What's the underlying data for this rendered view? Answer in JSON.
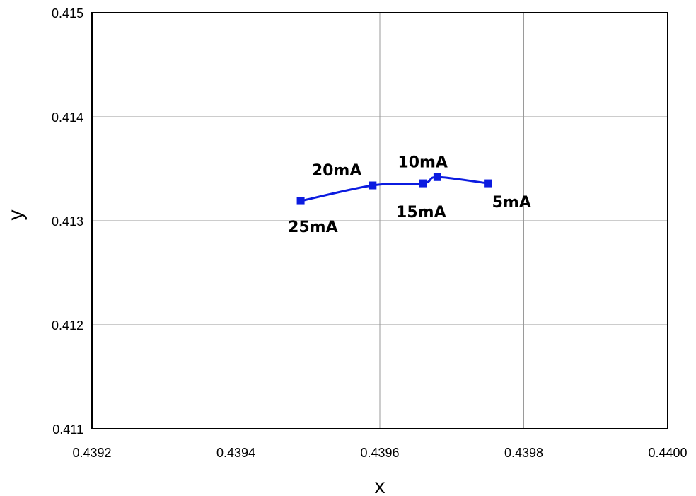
{
  "chart_data": {
    "type": "scatter",
    "xlabel": "x",
    "ylabel": "y",
    "xlim": [
      0.4392,
      0.44
    ],
    "ylim": [
      0.411,
      0.415
    ],
    "x_ticks": [
      "0.4392",
      "0.4394",
      "0.4396",
      "0.4398",
      "0.4400"
    ],
    "y_ticks": [
      "0.411",
      "0.412",
      "0.413",
      "0.414",
      "0.415"
    ],
    "grid": true,
    "series": [
      {
        "color": "#0b1be0",
        "marker": "square",
        "smooth": true,
        "points": [
          {
            "x": 0.43975,
            "y": 0.41336,
            "label": "5mA"
          },
          {
            "x": 0.43968,
            "y": 0.41342,
            "label": "10mA"
          },
          {
            "x": 0.43966,
            "y": 0.41336,
            "label": "15mA"
          },
          {
            "x": 0.43959,
            "y": 0.41334,
            "label": "20mA"
          },
          {
            "x": 0.43949,
            "y": 0.41319,
            "label": "25mA"
          }
        ]
      }
    ]
  }
}
